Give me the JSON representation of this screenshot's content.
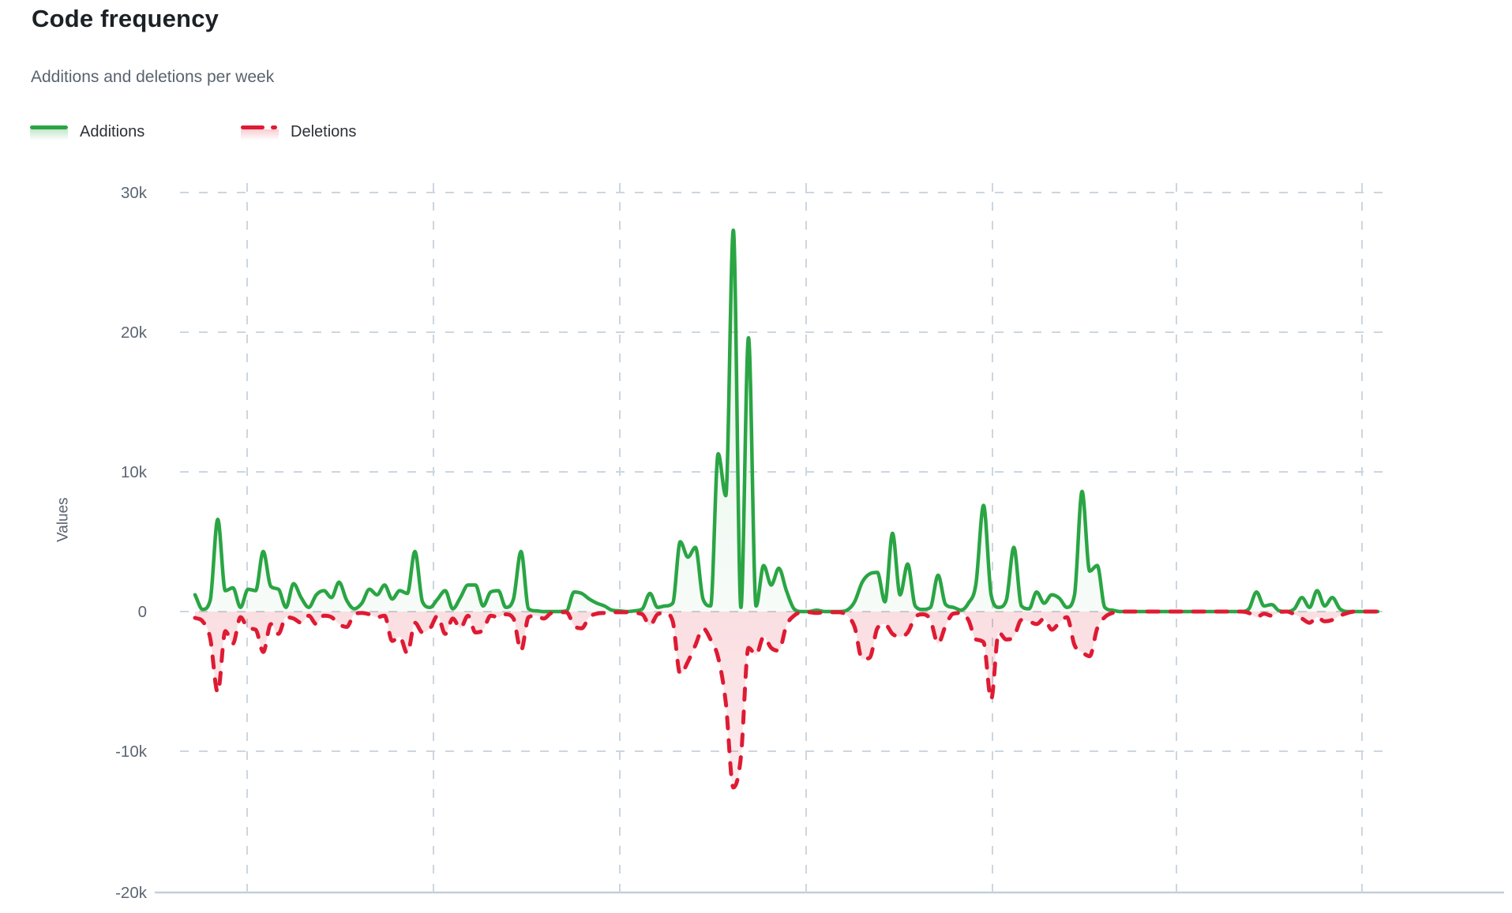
{
  "header": {
    "title": "Code frequency",
    "subtitle": "Additions and deletions per week"
  },
  "legend": {
    "additions_label": "Additions",
    "deletions_label": "Deletions"
  },
  "y_axis": {
    "title": "Values",
    "tick_labels": [
      "30k",
      "20k",
      "10k",
      "0",
      "-10k",
      "-20k"
    ]
  },
  "colors": {
    "additions": "#2aa544",
    "deletions": "#de1b33",
    "additions_fill": "rgba(42,165,68,0.10)",
    "deletions_fill": "rgba(222,27,51,0.13)",
    "gridline": "#ccd6df",
    "axis_line": "#c2cedd",
    "tick_text": "#5b6672"
  },
  "chart_data": {
    "type": "line",
    "title": "Code frequency",
    "subtitle": "Additions and deletions per week",
    "x_unit": "week",
    "n_points": 157,
    "ylabel": "Values",
    "ylim": [
      -20000,
      30000
    ],
    "y_ticks": [
      30000,
      20000,
      10000,
      0,
      -10000,
      -20000
    ],
    "grid": true,
    "legend_position": "top-left",
    "series": [
      {
        "name": "Additions",
        "line": "solid",
        "values": [
          1200,
          150,
          800,
          6600,
          1500,
          1700,
          300,
          1600,
          1500,
          4300,
          1800,
          1600,
          300,
          2000,
          1000,
          300,
          1200,
          1500,
          1000,
          2100,
          800,
          200,
          600,
          1600,
          1200,
          1900,
          900,
          1500,
          1300,
          4300,
          700,
          300,
          900,
          1500,
          200,
          1000,
          1900,
          1900,
          400,
          1400,
          1500,
          300,
          900,
          4300,
          200,
          50,
          0,
          0,
          0,
          50,
          1400,
          1300,
          900,
          600,
          400,
          100,
          50,
          0,
          50,
          200,
          1300,
          300,
          400,
          600,
          5000,
          3900,
          4600,
          900,
          400,
          11300,
          8300,
          27300,
          300,
          19600,
          400,
          3300,
          1900,
          3100,
          1500,
          200,
          0,
          0,
          100,
          0,
          0,
          0,
          100,
          700,
          2100,
          2700,
          2800,
          700,
          5600,
          1200,
          3400,
          400,
          150,
          300,
          2600,
          500,
          300,
          100,
          600,
          2000,
          7600,
          1200,
          300,
          800,
          4600,
          400,
          200,
          1400,
          600,
          1200,
          950,
          300,
          1200,
          8600,
          2900,
          3300,
          300,
          100,
          0,
          0,
          0,
          0,
          0,
          0,
          0,
          0,
          0,
          0,
          0,
          0,
          0,
          0,
          0,
          0,
          0,
          200,
          1400,
          400,
          500,
          50,
          0,
          200,
          1000,
          300,
          1500,
          400,
          1000,
          200,
          0,
          0,
          0,
          0,
          0
        ]
      },
      {
        "name": "Deletions",
        "line": "dashed",
        "values": [
          -450,
          -700,
          -1900,
          -5800,
          -1400,
          -2300,
          -400,
          -1200,
          -1300,
          -2900,
          -900,
          -1600,
          -400,
          -500,
          -800,
          -300,
          -900,
          -300,
          -400,
          -900,
          -1100,
          -200,
          -100,
          -200,
          -400,
          -300,
          -2100,
          -1800,
          -3000,
          -800,
          -1500,
          -1200,
          -300,
          -1600,
          -500,
          -1200,
          -300,
          -1500,
          -1300,
          -300,
          -400,
          -200,
          -500,
          -2800,
          -400,
          -300,
          -500,
          -100,
          -50,
          -50,
          -1000,
          -1200,
          -400,
          -150,
          -100,
          -50,
          -50,
          -50,
          -100,
          -200,
          -1000,
          -200,
          -100,
          -700,
          -4500,
          -3600,
          -2400,
          -1200,
          -2000,
          -3300,
          -6500,
          -12600,
          -10400,
          -2600,
          -3100,
          -1800,
          -2600,
          -2800,
          -1000,
          -300,
          -50,
          -50,
          -100,
          -50,
          -50,
          -50,
          -300,
          -1100,
          -3400,
          -3300,
          -1200,
          -900,
          -1600,
          -1800,
          -1500,
          -400,
          -200,
          -600,
          -2300,
          -1000,
          -150,
          -100,
          -600,
          -2000,
          -2200,
          -6300,
          -1500,
          -2000,
          -1800,
          -600,
          -700,
          -900,
          -500,
          -1300,
          -800,
          -400,
          -2400,
          -2900,
          -3200,
          -1200,
          -400,
          -100,
          0,
          0,
          0,
          0,
          0,
          0,
          0,
          0,
          0,
          0,
          0,
          0,
          0,
          0,
          0,
          0,
          0,
          -100,
          -400,
          -150,
          -300,
          -50,
          0,
          -200,
          -500,
          -800,
          -400,
          -700,
          -600,
          -300,
          -100,
          0,
          0,
          0,
          0
        ]
      }
    ]
  }
}
